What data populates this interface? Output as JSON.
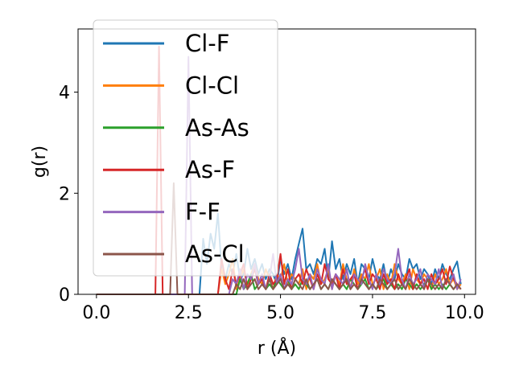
{
  "chart_data": {
    "type": "line",
    "xlabel": "r (Å)",
    "ylabel": "g(r)",
    "xlim": [
      -0.5,
      10.3
    ],
    "ylim": [
      0,
      5.25
    ],
    "xticks": [
      0.0,
      2.5,
      5.0,
      7.5,
      10.0
    ],
    "xtick_labels": [
      "0.0",
      "2.5",
      "5.0",
      "7.5",
      "10.0"
    ],
    "yticks": [
      0,
      2,
      4
    ],
    "ytick_labels": [
      "0",
      "2",
      "4"
    ],
    "grid": false,
    "legend_position": "top-left",
    "series": [
      {
        "name": "Cl-F",
        "color": "#1f77b4",
        "x": [
          0,
          2.8,
          2.9,
          3.0,
          3.1,
          3.2,
          3.3,
          3.4,
          3.5,
          3.6,
          3.7,
          3.8,
          3.9,
          4.0,
          4.1,
          4.2,
          4.3,
          4.4,
          4.5,
          4.6,
          4.7,
          4.8,
          4.9,
          5.0,
          5.1,
          5.2,
          5.3,
          5.4,
          5.5,
          5.6,
          5.7,
          5.8,
          5.9,
          6.0,
          6.1,
          6.2,
          6.3,
          6.4,
          6.5,
          6.6,
          6.7,
          6.8,
          6.9,
          7.0,
          7.1,
          7.2,
          7.3,
          7.4,
          7.5,
          7.6,
          7.7,
          7.8,
          7.9,
          8.0,
          8.1,
          8.2,
          8.3,
          8.4,
          8.5,
          8.6,
          8.7,
          8.8,
          8.9,
          9.0,
          9.1,
          9.2,
          9.3,
          9.4,
          9.5,
          9.6,
          9.7,
          9.8,
          9.9
        ],
        "y": [
          0,
          0,
          1.1,
          0.6,
          1.2,
          0.9,
          1.6,
          0.5,
          0.3,
          0.6,
          0.4,
          0.8,
          0.3,
          0.4,
          0.9,
          0.5,
          0.7,
          0.4,
          0.6,
          0.3,
          0.5,
          0.4,
          0.2,
          0.7,
          0.4,
          0.6,
          0.3,
          0.7,
          1.0,
          1.3,
          0.5,
          0.6,
          0.4,
          0.7,
          0.6,
          0.9,
          0.3,
          1.05,
          0.5,
          0.7,
          0.3,
          0.6,
          0.4,
          0.7,
          0.2,
          0.6,
          0.5,
          0.3,
          0.7,
          0.4,
          0.3,
          0.6,
          0.2,
          0.5,
          0.3,
          0.6,
          0.4,
          0.3,
          0.7,
          0.5,
          0.6,
          0.3,
          0.5,
          0.4,
          0.2,
          0.5,
          0.3,
          0.6,
          0.4,
          0.3,
          0.5,
          0.65,
          0.2
        ]
      },
      {
        "name": "Cl-Cl",
        "color": "#ff7f0e",
        "x": [
          0,
          3.3,
          3.4,
          3.5,
          3.6,
          3.7,
          3.8,
          3.9,
          4.0,
          4.1,
          4.2,
          4.3,
          4.4,
          4.5,
          4.6,
          4.7,
          4.8,
          4.9,
          5.0,
          5.1,
          5.2,
          5.3,
          5.4,
          5.5,
          5.6,
          5.7,
          5.8,
          5.9,
          6.0,
          6.1,
          6.2,
          6.3,
          6.4,
          6.5,
          6.6,
          6.7,
          6.8,
          6.9,
          7.0,
          7.1,
          7.2,
          7.3,
          7.4,
          7.5,
          7.6,
          7.7,
          7.8,
          7.9,
          8.0,
          8.1,
          8.2,
          8.3,
          8.4,
          8.5,
          8.6,
          8.7,
          8.8,
          8.9,
          9.0,
          9.1,
          9.2,
          9.3,
          9.4,
          9.5,
          9.6,
          9.7,
          9.8,
          9.9
        ],
        "y": [
          0,
          0,
          0.5,
          0.2,
          0.4,
          0.7,
          0.1,
          0.3,
          0.5,
          0.2,
          0.4,
          0.6,
          0.3,
          0.2,
          0.5,
          0.3,
          0.1,
          0.4,
          0.3,
          0.6,
          0.2,
          0.4,
          0.3,
          0.2,
          0.5,
          0.1,
          0.4,
          0.3,
          0.6,
          0.2,
          0.3,
          0.5,
          0.1,
          0.4,
          0.2,
          0.6,
          0.3,
          0.1,
          0.5,
          0.2,
          0.4,
          0.3,
          0.6,
          0.2,
          0.3,
          0.5,
          0.1,
          0.4,
          0.2,
          0.6,
          0.3,
          0.2,
          0.4,
          0.1,
          0.5,
          0.3,
          0.2,
          0.4,
          0.3,
          0.1,
          0.4,
          0.2,
          0.3,
          0.5,
          0.2,
          0.3,
          0.1,
          0.2
        ]
      },
      {
        "name": "As-As",
        "color": "#2ca02c",
        "x": [
          0,
          3.8,
          3.9,
          4.0,
          4.1,
          4.2,
          4.3,
          4.4,
          4.5,
          4.6,
          4.7,
          4.8,
          4.9,
          5.0,
          5.1,
          5.2,
          5.3,
          5.4,
          5.5,
          5.6,
          5.7,
          5.8,
          5.9,
          6.0,
          6.1,
          6.2,
          6.3,
          6.4,
          6.5,
          6.6,
          6.7,
          6.8,
          6.9,
          7.0,
          7.1,
          7.2,
          7.3,
          7.4,
          7.5,
          7.6,
          7.7,
          7.8,
          7.9,
          8.0,
          8.1,
          8.2,
          8.3,
          8.4,
          8.5,
          8.6,
          8.7,
          8.8,
          8.9,
          9.0,
          9.1,
          9.2,
          9.3,
          9.4,
          9.5,
          9.6,
          9.7,
          9.8,
          9.9
        ],
        "y": [
          0,
          0,
          0.3,
          0.1,
          0.2,
          0.4,
          0.1,
          0.2,
          0.3,
          0.1,
          0.2,
          0.1,
          0.3,
          0.2,
          0.1,
          0.3,
          0.1,
          0.2,
          0.1,
          0.3,
          0.2,
          0.1,
          0.2,
          0.3,
          0.1,
          0.2,
          0.1,
          0.3,
          0.2,
          0.1,
          0.2,
          0.1,
          0.3,
          0.2,
          0.1,
          0.2,
          0.3,
          0.1,
          0.2,
          0.1,
          0.2,
          0.3,
          0.1,
          0.2,
          0.1,
          0.2,
          0.1,
          0.3,
          0.2,
          0.1,
          0.2,
          0.1,
          0.2,
          0.3,
          0.1,
          0.2,
          0.1,
          0.2,
          0.1,
          0.2,
          0.1,
          0.2,
          0.1
        ]
      },
      {
        "name": "As-F",
        "color": "#d62728",
        "x": [
          0,
          1.6,
          1.7,
          1.8,
          1.9,
          2.0,
          2.1,
          2.2,
          2.3,
          2.4,
          2.5,
          2.6,
          2.7,
          2.8,
          2.9,
          3.0,
          3.1,
          3.2,
          3.3,
          3.4,
          3.5,
          3.6,
          3.7,
          3.8,
          3.9,
          4.0,
          4.1,
          4.2,
          4.3,
          4.4,
          4.5,
          4.6,
          4.7,
          4.8,
          4.9,
          5.0,
          5.1,
          5.2,
          5.3,
          5.4,
          5.5,
          5.6,
          5.7,
          5.8,
          5.9,
          6.0,
          6.1,
          6.2,
          6.3,
          6.4,
          6.5,
          6.6,
          6.7,
          6.8,
          6.9,
          7.0,
          7.1,
          7.2,
          7.3,
          7.4,
          7.5,
          7.6,
          7.7,
          7.8,
          7.9,
          8.0,
          8.1,
          8.2,
          8.3,
          8.4,
          8.5,
          8.6,
          8.7,
          8.8,
          8.9,
          9.0,
          9.1,
          9.2,
          9.3,
          9.4,
          9.5,
          9.6,
          9.7,
          9.8,
          9.9
        ],
        "y": [
          0,
          0,
          4.9,
          0,
          0,
          0,
          0,
          0,
          0,
          0,
          0,
          0,
          0,
          0,
          0,
          0,
          0,
          0,
          0,
          0.7,
          0.3,
          0.1,
          0.5,
          0.2,
          0.4,
          0.6,
          0.1,
          0.3,
          0.5,
          0.2,
          0.3,
          0.1,
          0.4,
          0.2,
          0.3,
          0.8,
          0.2,
          0.5,
          0.1,
          0.3,
          0.4,
          0.2,
          0.5,
          0.3,
          0.1,
          0.4,
          0.2,
          0.6,
          0.3,
          0.2,
          0.4,
          0.1,
          0.5,
          0.2,
          0.3,
          0.4,
          0.1,
          0.3,
          0.5,
          0.2,
          0.4,
          0.3,
          0.1,
          0.4,
          0.2,
          0.3,
          0.1,
          0.4,
          0.2,
          0.3,
          0.5,
          0.1,
          0.4,
          0.2,
          0.3,
          0.1,
          0.4,
          0.2,
          0.3,
          0.5,
          0.2,
          0.55,
          0.3,
          0.2,
          0.1
        ]
      },
      {
        "name": "F-F",
        "color": "#9467bd",
        "x": [
          0,
          2.4,
          2.5,
          2.6,
          2.7,
          2.8,
          2.9,
          3.0,
          3.1,
          3.2,
          3.3,
          3.4,
          3.5,
          3.6,
          3.7,
          3.8,
          3.9,
          4.0,
          4.1,
          4.2,
          4.3,
          4.4,
          4.5,
          4.6,
          4.7,
          4.8,
          4.9,
          5.0,
          5.1,
          5.2,
          5.3,
          5.4,
          5.5,
          5.6,
          5.7,
          5.8,
          5.9,
          6.0,
          6.1,
          6.2,
          6.3,
          6.4,
          6.5,
          6.6,
          6.7,
          6.8,
          6.9,
          7.0,
          7.1,
          7.2,
          7.3,
          7.4,
          7.5,
          7.6,
          7.7,
          7.8,
          7.9,
          8.0,
          8.1,
          8.2,
          8.3,
          8.4,
          8.5,
          8.6,
          8.7,
          8.8,
          8.9,
          9.0,
          9.1,
          9.2,
          9.3,
          9.4,
          9.5,
          9.6,
          9.7,
          9.8,
          9.9
        ],
        "y": [
          0,
          0,
          4.7,
          0,
          0,
          0,
          0,
          0,
          0,
          0,
          0,
          0,
          0,
          0,
          0.3,
          0.2,
          0.5,
          0.1,
          0.4,
          0.3,
          0.6,
          0.2,
          0.4,
          0.1,
          0.3,
          0.8,
          0.2,
          0.4,
          0.1,
          0.3,
          0.2,
          0.5,
          0.9,
          0.3,
          0.2,
          0.4,
          0.1,
          0.5,
          0.3,
          0.2,
          0.6,
          0.1,
          0.4,
          0.3,
          0.2,
          0.5,
          0.1,
          0.4,
          0.3,
          0.2,
          0.6,
          0.3,
          0.1,
          0.4,
          0.2,
          0.5,
          0.3,
          0.2,
          0.4,
          0.9,
          0.3,
          0.1,
          0.4,
          0.2,
          0.3,
          0.5,
          0.1,
          0.4,
          0.3,
          0.2,
          0.5,
          0.1,
          0.3,
          0.2,
          0.4,
          0.1,
          0.3
        ]
      },
      {
        "name": "As-Cl",
        "color": "#8c564b",
        "x": [
          0,
          2.0,
          2.1,
          2.2,
          2.3,
          2.4,
          2.5,
          2.6,
          2.7,
          2.8,
          2.9,
          3.0,
          3.1,
          3.2,
          3.3,
          3.4,
          3.5,
          3.6,
          3.7,
          3.8,
          3.9,
          4.0,
          4.1,
          4.2,
          4.3,
          4.4,
          4.5,
          4.6,
          4.7,
          4.8,
          4.9,
          5.0,
          5.1,
          5.2,
          5.3,
          5.4,
          5.5,
          5.6,
          5.7,
          5.8,
          5.9,
          6.0,
          6.1,
          6.2,
          6.3,
          6.4,
          6.5,
          6.6,
          6.7,
          6.8,
          6.9,
          7.0,
          7.1,
          7.2,
          7.3,
          7.4,
          7.5,
          7.6,
          7.7,
          7.8,
          7.9,
          8.0,
          8.1,
          8.2,
          8.3,
          8.4,
          8.5,
          8.6,
          8.7,
          8.8,
          8.9,
          9.0,
          9.1,
          9.2,
          9.3,
          9.4,
          9.5,
          9.6,
          9.7,
          9.8,
          9.9
        ],
        "y": [
          0,
          0,
          2.2,
          0,
          0,
          0,
          0,
          0,
          0,
          0,
          0,
          0,
          0,
          0,
          0,
          0,
          0,
          0,
          0,
          0.2,
          0.1,
          0.3,
          0.1,
          0.2,
          0.3,
          0.1,
          0.2,
          0.1,
          0.3,
          0.1,
          0.2,
          0.3,
          0.1,
          0.2,
          0.1,
          0.3,
          0.2,
          0.1,
          0.3,
          0.1,
          0.2,
          0.3,
          0.1,
          0.2,
          0.1,
          0.3,
          0.2,
          0.1,
          0.2,
          0.3,
          0.1,
          0.2,
          0.1,
          0.3,
          0.2,
          0.1,
          0.2,
          0.1,
          0.3,
          0.2,
          0.1,
          0.2,
          0.3,
          0.1,
          0.2,
          0.1,
          0.3,
          0.2,
          0.1,
          0.2,
          0.1,
          0.3,
          0.2,
          0.1,
          0.2,
          0.1,
          0.3,
          0.2,
          0.1,
          0.2,
          0.1
        ]
      }
    ]
  }
}
